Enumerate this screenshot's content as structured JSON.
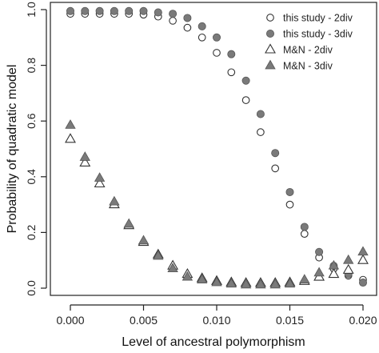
{
  "chart_data": {
    "type": "scatter",
    "title": "",
    "xlabel": "Level of ancestral polymorphism",
    "ylabel": "Probability of quadratic model",
    "xlim": [
      0.0,
      0.02
    ],
    "ylim": [
      0.0,
      1.0
    ],
    "x_ticks": [
      "0.000",
      "0.005",
      "0.010",
      "0.015",
      "0.020"
    ],
    "y_ticks": [
      "0.0",
      "0.2",
      "0.4",
      "0.6",
      "0.8",
      "1.0"
    ],
    "grid": false,
    "legend_position": "top-right",
    "x": [
      0.0,
      0.001,
      0.002,
      0.003,
      0.004,
      0.005,
      0.006,
      0.007,
      0.008,
      0.009,
      0.01,
      0.011,
      0.012,
      0.013,
      0.014,
      0.015,
      0.016,
      0.017,
      0.018,
      0.019,
      0.02
    ],
    "series": [
      {
        "name": "this study - 2div",
        "marker": "circle-open",
        "color": "#444444",
        "values": [
          0.985,
          0.985,
          0.985,
          0.985,
          0.985,
          0.982,
          0.975,
          0.96,
          0.935,
          0.9,
          0.845,
          0.775,
          0.675,
          0.56,
          0.43,
          0.3,
          0.195,
          0.11,
          0.07,
          0.045,
          0.03
        ]
      },
      {
        "name": "this study - 3div",
        "marker": "circle-filled",
        "color": "#7a7a7a",
        "values": [
          0.995,
          0.995,
          0.995,
          0.995,
          0.995,
          0.995,
          0.99,
          0.985,
          0.97,
          0.94,
          0.9,
          0.84,
          0.745,
          0.625,
          0.485,
          0.345,
          0.22,
          0.13,
          0.08,
          0.05,
          0.02
        ]
      },
      {
        "name": "M&N - 2div",
        "marker": "triangle-open",
        "color": "#444444",
        "values": [
          0.535,
          0.45,
          0.375,
          0.3,
          0.225,
          0.165,
          0.12,
          0.08,
          0.05,
          0.035,
          0.025,
          0.02,
          0.018,
          0.018,
          0.018,
          0.02,
          0.025,
          0.04,
          0.05,
          0.065,
          0.1
        ]
      },
      {
        "name": "M&N - 3div",
        "marker": "triangle-filled",
        "color": "#7a7a7a",
        "values": [
          0.585,
          0.47,
          0.395,
          0.31,
          0.23,
          0.17,
          0.115,
          0.07,
          0.04,
          0.03,
          0.02,
          0.015,
          0.012,
          0.012,
          0.012,
          0.015,
          0.03,
          0.055,
          0.08,
          0.1,
          0.13
        ]
      }
    ]
  }
}
